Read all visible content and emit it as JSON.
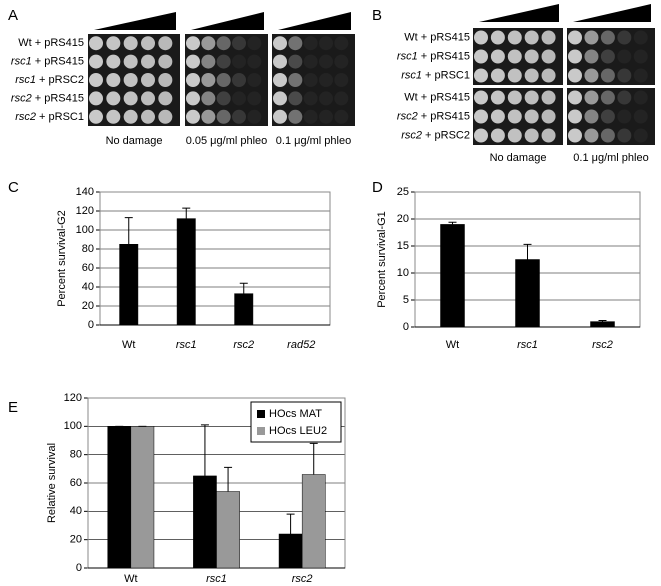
{
  "figure": {
    "panels": [
      {
        "label": "A",
        "groups": [
          [
            [
              "Wt",
              "+ pRS415"
            ],
            [
              "rsc1",
              "+ pRS415"
            ],
            [
              "rsc1",
              "+ pRSC2"
            ],
            [
              "rsc2",
              "+ pRS415"
            ],
            [
              "rsc2",
              "+ pRSC1"
            ]
          ]
        ],
        "conditions": [
          "No damage",
          "0.05 μg/ml phleo",
          "0.1 μg/ml phleo"
        ]
      },
      {
        "label": "B",
        "groups": [
          [
            [
              "Wt",
              "+ pRS415"
            ],
            [
              "rsc1",
              "+ pRS415"
            ],
            [
              "rsc1",
              "+ pRSC1"
            ]
          ],
          [
            [
              "Wt",
              "+ pRS415"
            ],
            [
              "rsc2",
              "+ pRS415"
            ],
            [
              "rsc2",
              "+ pRSC2"
            ]
          ]
        ],
        "conditions": [
          "No damage",
          "0.1 μg/ml phleo"
        ]
      }
    ]
  },
  "chart_data": [
    {
      "type": "bar",
      "label": "C",
      "ylabel": "Percent survival-G2",
      "categories": [
        "Wt",
        "rsc1",
        "rsc2",
        "rad52"
      ],
      "values": [
        85,
        112,
        33,
        0
      ],
      "errors": [
        28,
        11,
        11,
        null
      ],
      "color": "#000000",
      "ylim": [
        0,
        140
      ],
      "yticks": [
        0,
        20,
        40,
        60,
        80,
        100,
        120,
        140
      ],
      "grid": true
    },
    {
      "type": "bar",
      "label": "D",
      "ylabel": "Percent survival-G1",
      "categories": [
        "Wt",
        "rsc1",
        "rsc2"
      ],
      "values": [
        19,
        12.5,
        1
      ],
      "errors": [
        0.4,
        2.8,
        0.2
      ],
      "color": "#000000",
      "ylim": [
        0,
        25
      ],
      "yticks": [
        0,
        5,
        10,
        15,
        20,
        25
      ],
      "grid": true
    },
    {
      "type": "bar",
      "label": "E",
      "ylabel": "Relative survival",
      "categories": [
        "Wt",
        "rsc1",
        "rsc2"
      ],
      "series": [
        {
          "name": "HOcs MAT",
          "color": "#000000",
          "values": [
            100,
            65,
            24
          ],
          "errors": [
            0,
            36,
            14
          ]
        },
        {
          "name": "HOcs LEU2",
          "color": "#999999",
          "values": [
            100,
            54,
            66
          ],
          "errors": [
            0,
            17,
            22
          ]
        }
      ],
      "ylim": [
        0,
        120
      ],
      "yticks": [
        0,
        20,
        40,
        60,
        80,
        100,
        120
      ],
      "grid": true,
      "legend": "top-right"
    }
  ]
}
